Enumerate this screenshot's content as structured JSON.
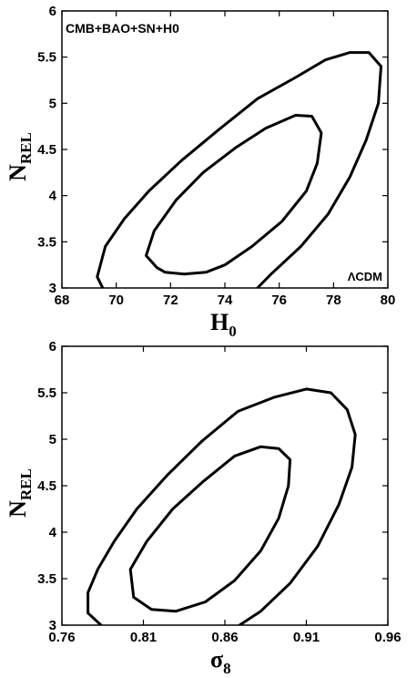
{
  "chart_data": [
    {
      "type": "contour",
      "xlabel": "H",
      "xlabel_sub": "0",
      "ylabel": "N",
      "ylabel_sub": "REL",
      "xlim": [
        68,
        80
      ],
      "ylim": [
        3,
        6
      ],
      "xticks": [
        68,
        70,
        72,
        74,
        76,
        78,
        80
      ],
      "yticks": [
        3,
        3.5,
        4,
        4.5,
        5,
        5.5,
        6
      ],
      "xtick_labels": [
        "68",
        "70",
        "72",
        "74",
        "76",
        "78",
        "80"
      ],
      "ytick_labels": [
        "3",
        "3.5",
        "4",
        "4.5",
        "5",
        "5.5",
        "6"
      ],
      "annotations": [
        {
          "text": "CMB+BAO+SN+H0",
          "position": "top-left"
        },
        {
          "text": "ΛCDM",
          "position": "bottom-right"
        }
      ],
      "contours": [
        {
          "name": "",
          "points": [
            [
              69.5,
              3.0
            ],
            [
              69.3,
              3.12
            ],
            [
              69.6,
              3.45
            ],
            [
              70.3,
              3.75
            ],
            [
              71.2,
              4.05
            ],
            [
              72.4,
              4.38
            ],
            [
              73.8,
              4.72
            ],
            [
              75.2,
              5.05
            ],
            [
              76.6,
              5.28
            ],
            [
              77.7,
              5.47
            ],
            [
              78.6,
              5.55
            ],
            [
              79.3,
              5.55
            ],
            [
              79.75,
              5.4
            ],
            [
              79.65,
              5.0
            ],
            [
              79.2,
              4.6
            ],
            [
              78.6,
              4.2
            ],
            [
              77.8,
              3.8
            ],
            [
              76.8,
              3.45
            ],
            [
              75.7,
              3.15
            ],
            [
              75.2,
              3.0
            ]
          ]
        },
        {
          "name": "",
          "points": [
            [
              71.5,
              3.22
            ],
            [
              71.1,
              3.35
            ],
            [
              71.4,
              3.62
            ],
            [
              72.2,
              3.95
            ],
            [
              73.2,
              4.25
            ],
            [
              74.4,
              4.52
            ],
            [
              75.5,
              4.73
            ],
            [
              76.6,
              4.87
            ],
            [
              77.2,
              4.86
            ],
            [
              77.55,
              4.68
            ],
            [
              77.4,
              4.35
            ],
            [
              77.0,
              4.05
            ],
            [
              76.1,
              3.72
            ],
            [
              75.0,
              3.45
            ],
            [
              74.0,
              3.25
            ],
            [
              73.3,
              3.17
            ],
            [
              72.5,
              3.15
            ],
            [
              71.8,
              3.17
            ],
            [
              71.5,
              3.22
            ]
          ]
        }
      ]
    },
    {
      "type": "contour",
      "xlabel": "σ",
      "xlabel_sub": "8",
      "ylabel": "N",
      "ylabel_sub": "REL",
      "xlim": [
        0.76,
        0.96
      ],
      "ylim": [
        3,
        6
      ],
      "xticks": [
        0.76,
        0.81,
        0.86,
        0.91,
        0.96
      ],
      "yticks": [
        3,
        3.5,
        4,
        4.5,
        5,
        5.5,
        6
      ],
      "xtick_labels": [
        "0.76",
        "0.81",
        "0.86",
        "0.91",
        "0.96"
      ],
      "ytick_labels": [
        "3",
        "3.5",
        "4",
        "4.5",
        "5",
        "5.5",
        "6"
      ],
      "annotations": [],
      "contours": [
        {
          "name": "",
          "points": [
            [
              0.784,
              3.0
            ],
            [
              0.776,
              3.13
            ],
            [
              0.776,
              3.35
            ],
            [
              0.782,
              3.6
            ],
            [
              0.792,
              3.9
            ],
            [
              0.806,
              4.25
            ],
            [
              0.825,
              4.62
            ],
            [
              0.846,
              4.98
            ],
            [
              0.868,
              5.3
            ],
            [
              0.89,
              5.45
            ],
            [
              0.91,
              5.54
            ],
            [
              0.925,
              5.5
            ],
            [
              0.935,
              5.32
            ],
            [
              0.94,
              5.05
            ],
            [
              0.938,
              4.7
            ],
            [
              0.93,
              4.3
            ],
            [
              0.917,
              3.85
            ],
            [
              0.9,
              3.45
            ],
            [
              0.882,
              3.15
            ],
            [
              0.869,
              3.0
            ]
          ]
        },
        {
          "name": "",
          "points": [
            [
              0.804,
              3.3
            ],
            [
              0.802,
              3.6
            ],
            [
              0.812,
              3.9
            ],
            [
              0.828,
              4.25
            ],
            [
              0.847,
              4.55
            ],
            [
              0.866,
              4.82
            ],
            [
              0.882,
              4.92
            ],
            [
              0.893,
              4.9
            ],
            [
              0.9,
              4.78
            ],
            [
              0.899,
              4.5
            ],
            [
              0.893,
              4.15
            ],
            [
              0.882,
              3.8
            ],
            [
              0.866,
              3.48
            ],
            [
              0.848,
              3.25
            ],
            [
              0.83,
              3.15
            ],
            [
              0.815,
              3.17
            ],
            [
              0.804,
              3.3
            ]
          ]
        }
      ]
    }
  ]
}
